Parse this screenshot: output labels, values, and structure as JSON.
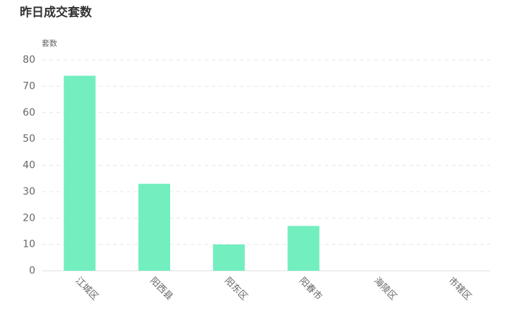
{
  "chart_data": {
    "type": "bar",
    "title": "昨日成交套数",
    "y_label": "套数",
    "categories": [
      "江城区",
      "阳西县",
      "阳东区",
      "阳春市",
      "海陵区",
      "市辖区"
    ],
    "values": [
      74,
      33,
      10,
      17,
      0,
      0
    ],
    "color": "#73eebf",
    "ylim": [
      0,
      80
    ],
    "yticks": [
      0,
      10,
      20,
      30,
      40,
      50,
      60,
      70,
      80
    ],
    "grid": true
  }
}
